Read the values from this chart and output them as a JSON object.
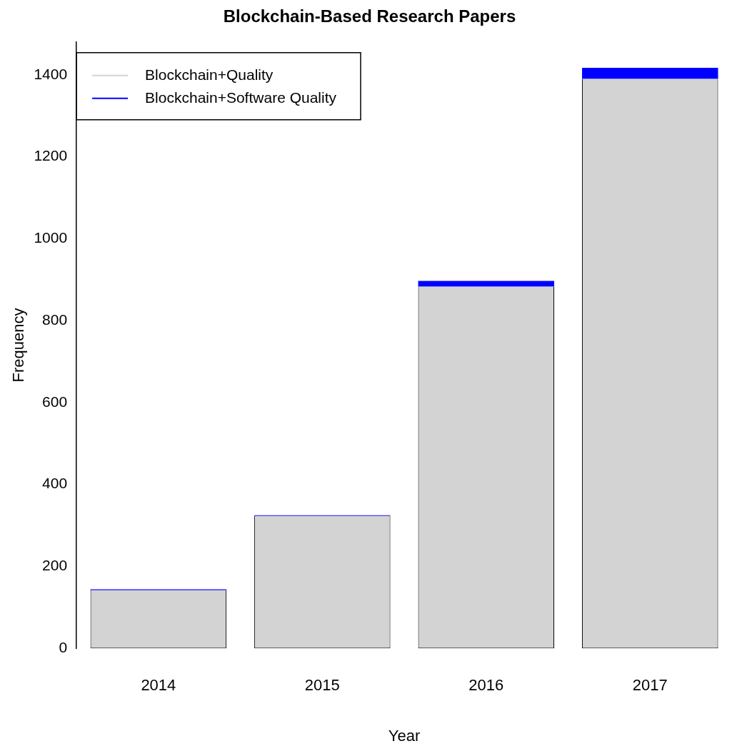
{
  "chart_data": {
    "type": "bar",
    "title": "Blockchain-Based Research Papers",
    "xlabel": "Year",
    "ylabel": "Frequency",
    "categories": [
      "2014",
      "2015",
      "2016",
      "2017"
    ],
    "series": [
      {
        "name": "Blockchain+Quality",
        "color": "#d3d3d3",
        "values": [
          142,
          323,
          883,
          1390
        ]
      },
      {
        "name": "Blockchain+Software Quality",
        "color": "#0000ff",
        "values": [
          2,
          2,
          14,
          27
        ]
      }
    ],
    "stacked": true,
    "ylim": [
      0,
      1480
    ],
    "yticks": [
      0,
      200,
      400,
      600,
      800,
      1000,
      1200,
      1400
    ],
    "legend": "top left"
  }
}
